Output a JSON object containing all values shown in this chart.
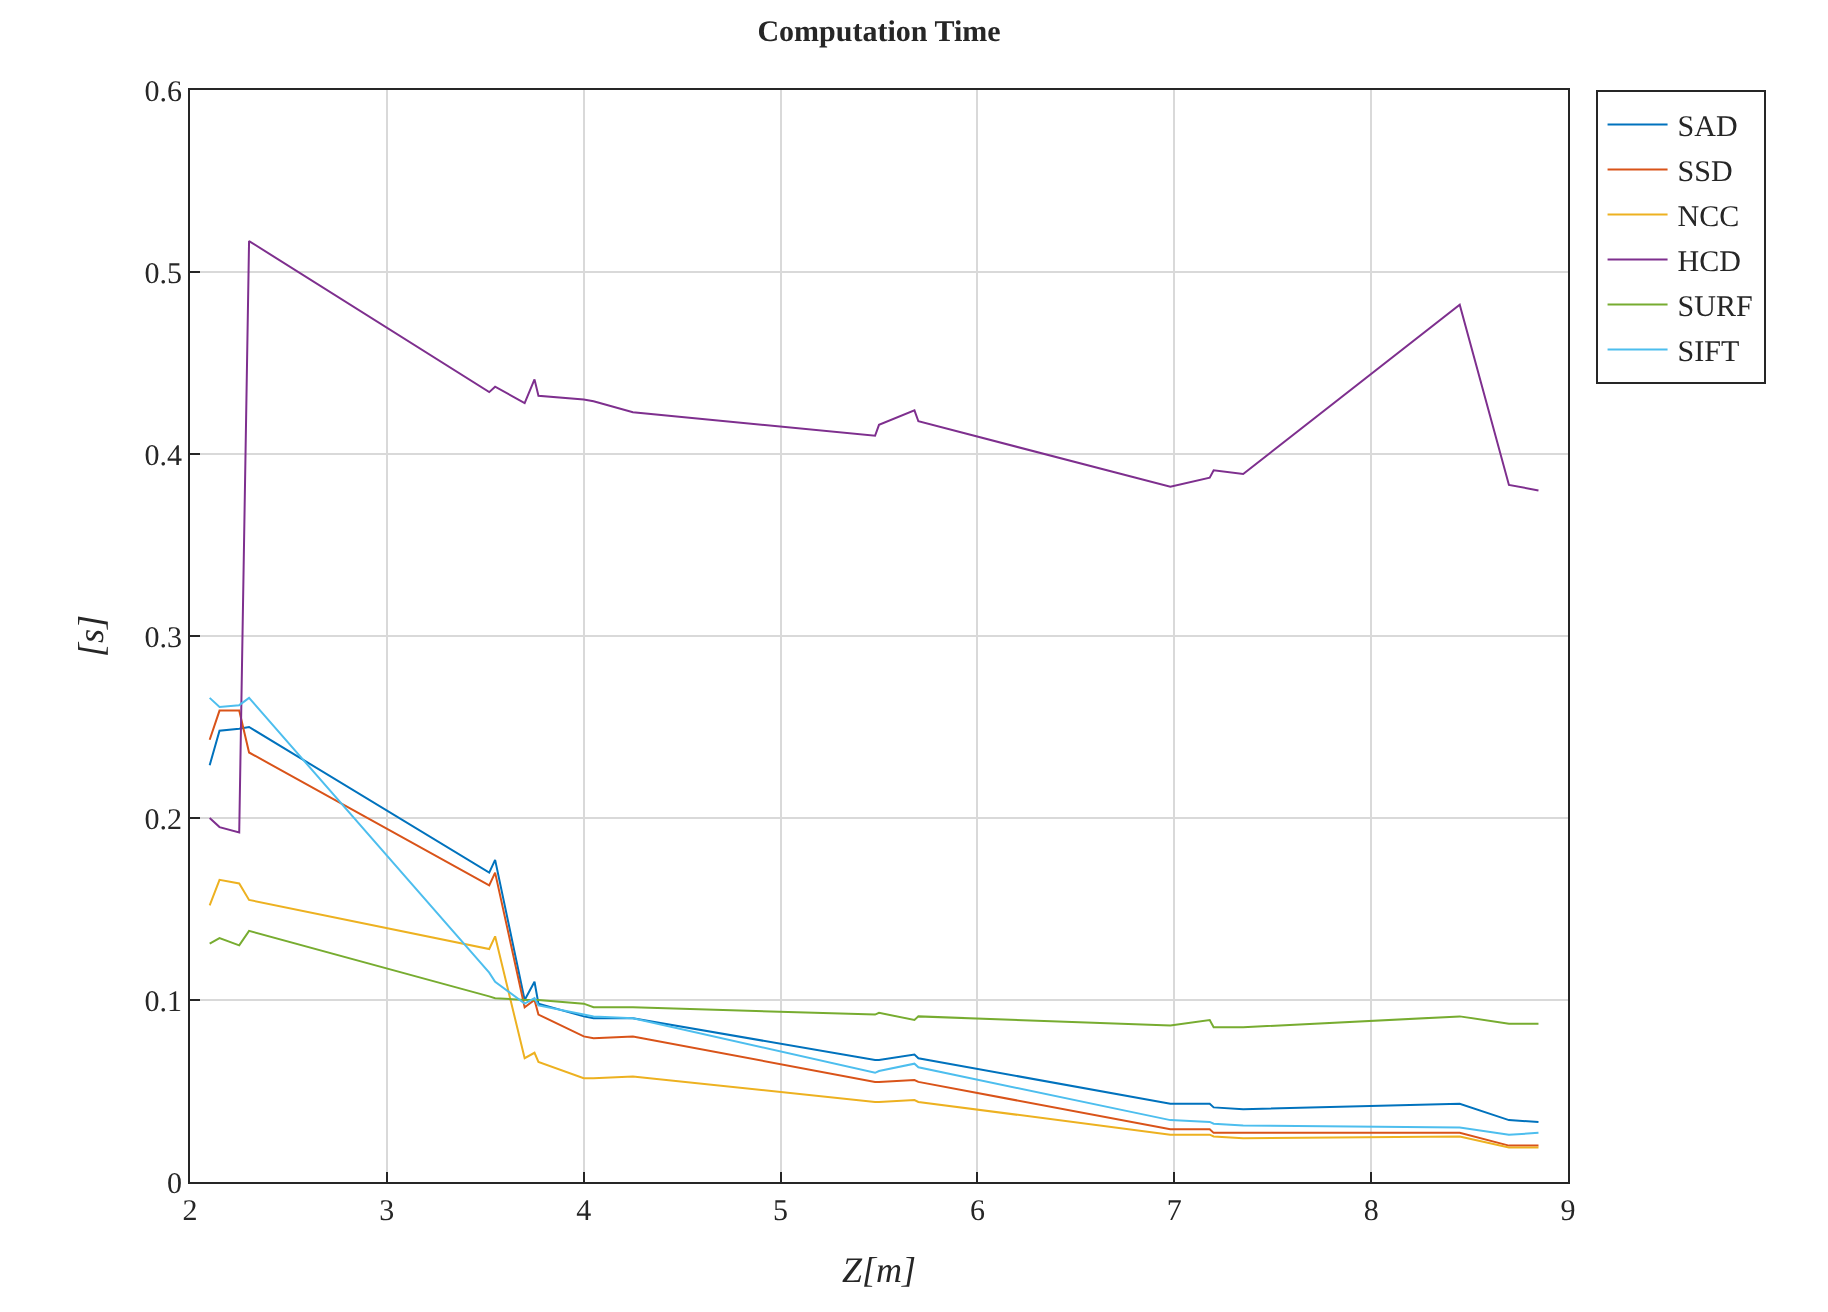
{
  "chart_data": {
    "type": "line",
    "title": "Computation Time",
    "xlabel": "Z[m]",
    "ylabel": "[s]",
    "x": [
      2.1,
      2.15,
      2.25,
      2.3,
      3.52,
      3.55,
      3.7,
      3.75,
      3.77,
      4.0,
      4.05,
      4.25,
      5.48,
      5.5,
      5.68,
      5.7,
      6.98,
      7.18,
      7.2,
      7.35,
      8.45,
      8.7,
      8.85
    ],
    "series": [
      {
        "name": "SAD",
        "color": "#0072bd",
        "values": [
          0.229,
          0.248,
          0.249,
          0.25,
          0.17,
          0.177,
          0.1,
          0.11,
          0.098,
          0.091,
          0.09,
          0.09,
          0.067,
          0.067,
          0.07,
          0.068,
          0.043,
          0.043,
          0.041,
          0.04,
          0.043,
          0.034,
          0.033
        ]
      },
      {
        "name": "SSD",
        "color": "#d95319",
        "values": [
          0.243,
          0.259,
          0.259,
          0.236,
          0.163,
          0.17,
          0.096,
          0.1,
          0.092,
          0.08,
          0.079,
          0.08,
          0.055,
          0.055,
          0.056,
          0.055,
          0.029,
          0.029,
          0.027,
          0.027,
          0.027,
          0.02,
          0.02
        ]
      },
      {
        "name": "NCC",
        "color": "#edb120",
        "values": [
          0.152,
          0.166,
          0.164,
          0.155,
          0.128,
          0.135,
          0.068,
          0.071,
          0.066,
          0.057,
          0.057,
          0.058,
          0.044,
          0.044,
          0.045,
          0.044,
          0.026,
          0.026,
          0.025,
          0.024,
          0.025,
          0.019,
          0.019
        ]
      },
      {
        "name": "HCD",
        "color": "#7e2f8e",
        "values": [
          0.2,
          0.195,
          0.192,
          0.517,
          0.434,
          0.437,
          0.428,
          0.441,
          0.432,
          0.43,
          0.429,
          0.423,
          0.41,
          0.416,
          0.424,
          0.418,
          0.382,
          0.387,
          0.391,
          0.389,
          0.482,
          0.383,
          0.38
        ]
      },
      {
        "name": "SURF",
        "color": "#77ac30",
        "values": [
          0.131,
          0.134,
          0.13,
          0.138,
          0.102,
          0.101,
          0.1,
          0.1,
          0.1,
          0.098,
          0.096,
          0.096,
          0.092,
          0.093,
          0.089,
          0.091,
          0.086,
          0.089,
          0.085,
          0.085,
          0.091,
          0.087,
          0.087
        ]
      },
      {
        "name": "SIFT",
        "color": "#4dbeee",
        "values": [
          0.266,
          0.261,
          0.262,
          0.266,
          0.115,
          0.11,
          0.098,
          0.101,
          0.097,
          0.092,
          0.091,
          0.09,
          0.06,
          0.061,
          0.065,
          0.063,
          0.034,
          0.033,
          0.032,
          0.031,
          0.03,
          0.026,
          0.027
        ]
      }
    ],
    "xlim": [
      2,
      9
    ],
    "xticks": [
      2,
      3,
      4,
      5,
      6,
      7,
      8,
      9
    ],
    "ylim": [
      0,
      0.6
    ],
    "yticks": [
      0,
      0.1,
      0.2,
      0.3,
      0.4,
      0.5,
      0.6
    ],
    "grid": true,
    "legend": "top right",
    "marker": "none",
    "line_style": "solid"
  }
}
